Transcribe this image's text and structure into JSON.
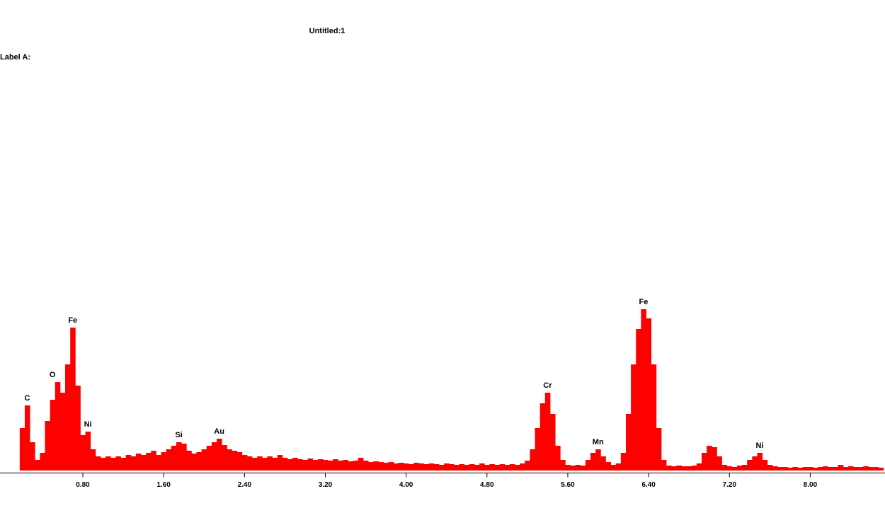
{
  "chart_data": {
    "type": "spectrum",
    "title": "Untitled:1",
    "subtitle": "Label A:",
    "color": "#ff0000",
    "xlim": [
      -0.02,
      8.74
    ],
    "ylim": [
      0,
      250
    ],
    "xticks": [
      {
        "value": 0.8,
        "label": "0.80"
      },
      {
        "value": 1.6,
        "label": "1.60"
      },
      {
        "value": 2.4,
        "label": "2.40"
      },
      {
        "value": 3.2,
        "label": "3.20"
      },
      {
        "value": 4,
        "label": "4.00"
      },
      {
        "value": 4.8,
        "label": "4.80"
      },
      {
        "value": 5.6,
        "label": "5.60"
      },
      {
        "value": 6.4,
        "label": "6.40"
      },
      {
        "value": 7.2,
        "label": "7.20"
      },
      {
        "value": 8,
        "label": "8.00"
      }
    ],
    "x": [
      0.2,
      0.25,
      0.3,
      0.35,
      0.4,
      0.45,
      0.5,
      0.55,
      0.6,
      0.65,
      0.7,
      0.75,
      0.8,
      0.85,
      0.9,
      0.95,
      1,
      1.05,
      1.1,
      1.15,
      1.2,
      1.25,
      1.3,
      1.35,
      1.4,
      1.45,
      1.5,
      1.55,
      1.6,
      1.65,
      1.7,
      1.75,
      1.8,
      1.85,
      1.9,
      1.95,
      2,
      2.05,
      2.1,
      2.15,
      2.2,
      2.25,
      2.3,
      2.35,
      2.4,
      2.45,
      2.5,
      2.55,
      2.6,
      2.65,
      2.7,
      2.75,
      2.8,
      2.85,
      2.9,
      2.95,
      3,
      3.05,
      3.1,
      3.15,
      3.2,
      3.25,
      3.3,
      3.35,
      3.4,
      3.45,
      3.5,
      3.55,
      3.6,
      3.65,
      3.7,
      3.75,
      3.8,
      3.85,
      3.9,
      3.95,
      4,
      4.05,
      4.1,
      4.15,
      4.2,
      4.25,
      4.3,
      4.35,
      4.4,
      4.45,
      4.5,
      4.55,
      4.6,
      4.65,
      4.7,
      4.75,
      4.8,
      4.85,
      4.9,
      4.95,
      5,
      5.05,
      5.1,
      5.15,
      5.2,
      5.25,
      5.3,
      5.35,
      5.4,
      5.45,
      5.5,
      5.55,
      5.6,
      5.65,
      5.7,
      5.75,
      5.8,
      5.85,
      5.9,
      5.95,
      6,
      6.05,
      6.1,
      6.15,
      6.2,
      6.25,
      6.3,
      6.35,
      6.4,
      6.45,
      6.5,
      6.55,
      6.6,
      6.65,
      6.7,
      6.75,
      6.8,
      6.85,
      6.9,
      6.95,
      7,
      7.05,
      7.1,
      7.15,
      7.2,
      7.25,
      7.3,
      7.35,
      7.4,
      7.45,
      7.5,
      7.55,
      7.6,
      7.65,
      7.7,
      7.75,
      7.8,
      7.85,
      7.9,
      7.95,
      8,
      8.05,
      8.1,
      8.15,
      8.2,
      8.25,
      8.3,
      8.35,
      8.4,
      8.45,
      8.5,
      8.55,
      8.6,
      8.65,
      8.7
    ],
    "values": [
      60,
      92,
      40,
      15,
      25,
      70,
      100,
      125,
      110,
      150,
      202,
      120,
      50,
      55,
      30,
      20,
      18,
      20,
      18,
      20,
      18,
      22,
      20,
      24,
      22,
      25,
      28,
      22,
      26,
      30,
      35,
      40,
      38,
      28,
      24,
      26,
      30,
      35,
      40,
      45,
      36,
      30,
      28,
      26,
      22,
      20,
      18,
      20,
      18,
      20,
      18,
      22,
      18,
      16,
      18,
      16,
      15,
      17,
      15,
      16,
      15,
      14,
      16,
      14,
      15,
      13,
      14,
      18,
      14,
      12,
      13,
      12,
      11,
      12,
      10,
      11,
      10,
      9,
      11,
      10,
      9,
      10,
      9,
      8,
      10,
      9,
      8,
      9,
      8,
      9,
      8,
      10,
      8,
      9,
      8,
      9,
      8,
      9,
      8,
      10,
      14,
      30,
      60,
      95,
      110,
      80,
      35,
      15,
      8,
      7,
      8,
      7,
      15,
      25,
      30,
      20,
      12,
      8,
      10,
      25,
      80,
      150,
      200,
      228,
      215,
      150,
      60,
      15,
      7,
      6,
      7,
      6,
      6,
      7,
      10,
      25,
      35,
      33,
      20,
      8,
      6,
      5,
      7,
      8,
      15,
      20,
      25,
      15,
      8,
      6,
      5,
      5,
      4,
      5,
      4,
      5,
      5,
      4,
      5,
      6,
      5,
      5,
      8,
      5,
      6,
      5,
      5,
      6,
      5,
      5,
      4
    ],
    "annotations": [
      {
        "text": "C",
        "x": 0.25
      },
      {
        "text": "O",
        "x": 0.5
      },
      {
        "text": "Fe",
        "x": 0.7
      },
      {
        "text": "Ni",
        "x": 0.85
      },
      {
        "text": "Si",
        "x": 1.75
      },
      {
        "text": "Au",
        "x": 2.15
      },
      {
        "text": "Cr",
        "x": 5.4
      },
      {
        "text": "Mn",
        "x": 5.9
      },
      {
        "text": "Fe",
        "x": 6.35
      },
      {
        "text": "Ni",
        "x": 7.5
      }
    ]
  }
}
